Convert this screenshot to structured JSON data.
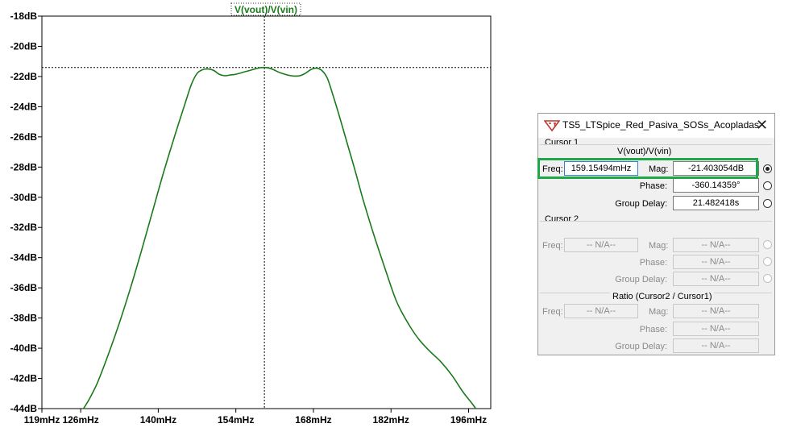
{
  "chart_data": {
    "type": "line",
    "title": "V(vout)/V(vin)",
    "x_unit": "mHz",
    "y_unit": "dB",
    "xlim": [
      119,
      200
    ],
    "ylim": [
      -44,
      -18
    ],
    "x_ticks": [
      "119mHz",
      "126mHz",
      "140mHz",
      "154mHz",
      "168mHz",
      "182mHz",
      "196mHz"
    ],
    "x_tick_values": [
      119,
      126,
      140,
      154,
      168,
      182,
      196
    ],
    "y_ticks": [
      "-18dB",
      "-20dB",
      "-22dB",
      "-24dB",
      "-26dB",
      "-28dB",
      "-30dB",
      "-32dB",
      "-34dB",
      "-36dB",
      "-38dB",
      "-40dB",
      "-42dB",
      "-44dB"
    ],
    "y_tick_values": [
      -18,
      -20,
      -22,
      -24,
      -26,
      -28,
      -30,
      -32,
      -34,
      -36,
      -38,
      -40,
      -42,
      -44
    ],
    "grid": false,
    "cursor": {
      "x": 159.155,
      "y": -21.403
    },
    "series": [
      {
        "color": "#1a7a1a",
        "x": [
          126.5,
          127.5,
          129,
          131,
          133,
          135,
          137,
          139,
          141,
          143,
          145,
          146,
          147,
          148,
          149,
          150,
          151,
          152,
          153,
          154,
          156,
          158,
          159.155,
          160.5,
          162,
          164,
          165.5,
          166.5,
          167.5,
          168.5,
          169.5,
          170.5,
          171.5,
          172.5,
          174,
          175.5,
          177,
          179,
          181,
          183,
          185,
          187,
          189,
          191,
          193,
          195,
          196.5,
          197.3
        ],
        "y": [
          -44.0,
          -43.4,
          -42.3,
          -40.4,
          -38.3,
          -36.0,
          -33.5,
          -30.9,
          -28.3,
          -25.9,
          -23.6,
          -22.5,
          -21.8,
          -21.55,
          -21.5,
          -21.6,
          -21.85,
          -21.95,
          -21.9,
          -21.85,
          -21.65,
          -21.45,
          -21.4,
          -21.5,
          -21.75,
          -21.95,
          -21.95,
          -21.8,
          -21.55,
          -21.45,
          -21.6,
          -22.1,
          -23.2,
          -24.4,
          -26.3,
          -28.2,
          -30.2,
          -32.6,
          -34.8,
          -36.9,
          -38.3,
          -39.4,
          -40.2,
          -40.9,
          -41.8,
          -42.9,
          -43.6,
          -44.0
        ]
      }
    ]
  },
  "dialog": {
    "title": "TS5_LTSpice_Red_Pasiva_SOSs_Acopladas",
    "close_icon": "close-icon",
    "logo_icon": "ltspice-logo-icon",
    "cursor1": {
      "group_label": "Cursor 1",
      "trace": "V(vout)/V(vin)",
      "freq_label": "Freq:",
      "freq_value": "159.15494mHz",
      "mag_label": "Mag:",
      "mag_value": "-21.403054dB",
      "phase_label": "Phase:",
      "phase_value": "-360.14359°",
      "gd_label": "Group Delay:",
      "gd_value": "21.482418s"
    },
    "cursor2": {
      "group_label": "Cursor 2",
      "freq_label": "Freq:",
      "freq_value": "-- N/A--",
      "mag_label": "Mag:",
      "mag_value": "-- N/A--",
      "phase_label": "Phase:",
      "phase_value": "-- N/A--",
      "gd_label": "Group Delay:",
      "gd_value": "-- N/A--"
    },
    "ratio": {
      "group_label": "Ratio (Cursor2 / Cursor1)",
      "freq_label": "Freq:",
      "freq_value": "-- N/A--",
      "mag_label": "Mag:",
      "mag_value": "-- N/A--",
      "phase_label": "Phase:",
      "phase_value": "-- N/A--",
      "gd_label": "Group Delay:",
      "gd_value": "-- N/A--"
    },
    "highlight_color": "#1fa84a"
  }
}
